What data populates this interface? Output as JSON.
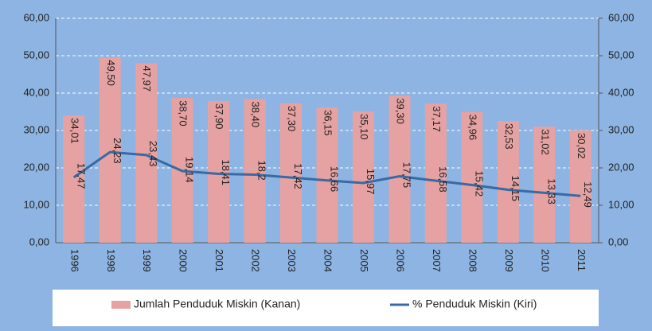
{
  "chart_data": {
    "type": "bar",
    "categories": [
      "1996",
      "1998",
      "1999",
      "2000",
      "2001",
      "2002",
      "2003",
      "2004",
      "2005",
      "2006",
      "2007",
      "2008",
      "2009",
      "2010",
      "2011"
    ],
    "series": [
      {
        "name": "Jumlah Penduduk Miskin (Kanan)",
        "type": "bar",
        "axis": "y2",
        "color": "#e6a2a2",
        "values": [
          34.01,
          49.5,
          47.97,
          38.7,
          37.9,
          38.4,
          37.3,
          36.15,
          35.1,
          39.3,
          37.17,
          34.96,
          32.53,
          31.02,
          30.02
        ],
        "value_labels": [
          "34,01",
          "49,50",
          "47,97",
          "38,70",
          "37,90",
          "38,40",
          "37,30",
          "36,15",
          "35,10",
          "39,30",
          "37,17",
          "34,96",
          "32,53",
          "31,02",
          "30,02"
        ]
      },
      {
        "name": "% Penduduk Miskin (Kiri)",
        "type": "line",
        "color": "#3a6aa3",
        "values": [
          17.47,
          24.23,
          23.43,
          19.14,
          18.41,
          18.2,
          17.42,
          16.66,
          15.97,
          17.75,
          16.58,
          15.42,
          14.15,
          13.33,
          12.49
        ],
        "value_labels": [
          "17,47",
          "24,23",
          "23,43",
          "19,14",
          "18,41",
          "18,2",
          "17,42",
          "16,66",
          "15,97",
          "17,75",
          "16,58",
          "15,42",
          "14,15",
          "13,33",
          "12,49"
        ]
      }
    ],
    "ylim": [
      0,
      60
    ],
    "yticks": [
      {
        "value": 0,
        "label": "0,00"
      },
      {
        "value": 10,
        "label": "10,00"
      },
      {
        "value": 20,
        "label": "20,00"
      },
      {
        "value": 30,
        "label": "30,00"
      },
      {
        "value": 40,
        "label": "40,00"
      },
      {
        "value": 50,
        "label": "50,00"
      },
      {
        "value": 60,
        "label": "60,00"
      }
    ],
    "y2lim": [
      0,
      60
    ],
    "y2ticks": [
      {
        "value": 0,
        "label": "0,00"
      },
      {
        "value": 10,
        "label": "10,00"
      },
      {
        "value": 20,
        "label": "20,00"
      },
      {
        "value": 30,
        "label": "30,00"
      },
      {
        "value": 40,
        "label": "40,00"
      },
      {
        "value": 50,
        "label": "50,00"
      },
      {
        "value": 60,
        "label": "60,00"
      }
    ],
    "grid": true,
    "legend": "bottom"
  }
}
